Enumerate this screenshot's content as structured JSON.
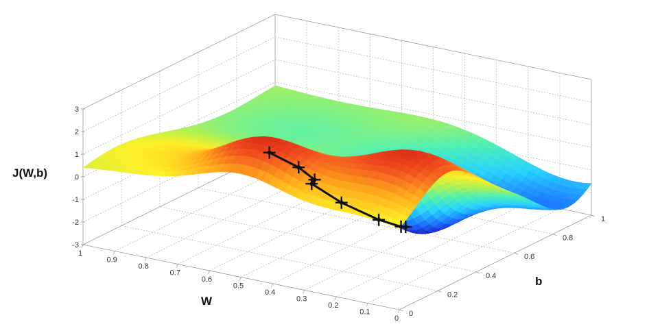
{
  "chart_data": {
    "type": "surface",
    "title": "",
    "zlabel": "J(W,b)",
    "xlabel": "W",
    "ylabel": "b",
    "w_ticks": [
      "1",
      "0.9",
      "0.8",
      "0.7",
      "0.6",
      "0.5",
      "0.4",
      "0.3",
      "0.2",
      "0.1",
      "0"
    ],
    "b_ticks": [
      "0",
      "0.2",
      "0.4",
      "0.6",
      "0.8",
      "1"
    ],
    "z_ticks": [
      "3",
      "2",
      "1",
      "0",
      "-1",
      "-2",
      "-3"
    ],
    "wlim": [
      0,
      1
    ],
    "blim": [
      0,
      1
    ],
    "zlim": [
      -3,
      3
    ],
    "grid": true,
    "colormap": [
      "#1e1ec8",
      "#1e78ff",
      "#28d2ff",
      "#50f0b4",
      "#b4f050",
      "#fff028",
      "#ffaa1e",
      "#f04b1e",
      "#c81414"
    ],
    "descent_path": {
      "color": "#111111",
      "points": [
        {
          "w": 0.52,
          "b": 0.18,
          "z": 1.7
        },
        {
          "w": 0.47,
          "b": 0.25,
          "z": 0.9
        },
        {
          "w": 0.45,
          "b": 0.3,
          "z": 0.2
        },
        {
          "w": 0.52,
          "b": 0.4,
          "z": -0.6
        },
        {
          "w": 0.45,
          "b": 0.44,
          "z": -1.4
        },
        {
          "w": 0.32,
          "b": 0.42,
          "z": -1.7
        },
        {
          "w": 0.28,
          "b": 0.47,
          "z": -2.1
        },
        {
          "w": 0.32,
          "b": 0.56,
          "z": -2.6
        }
      ]
    }
  }
}
